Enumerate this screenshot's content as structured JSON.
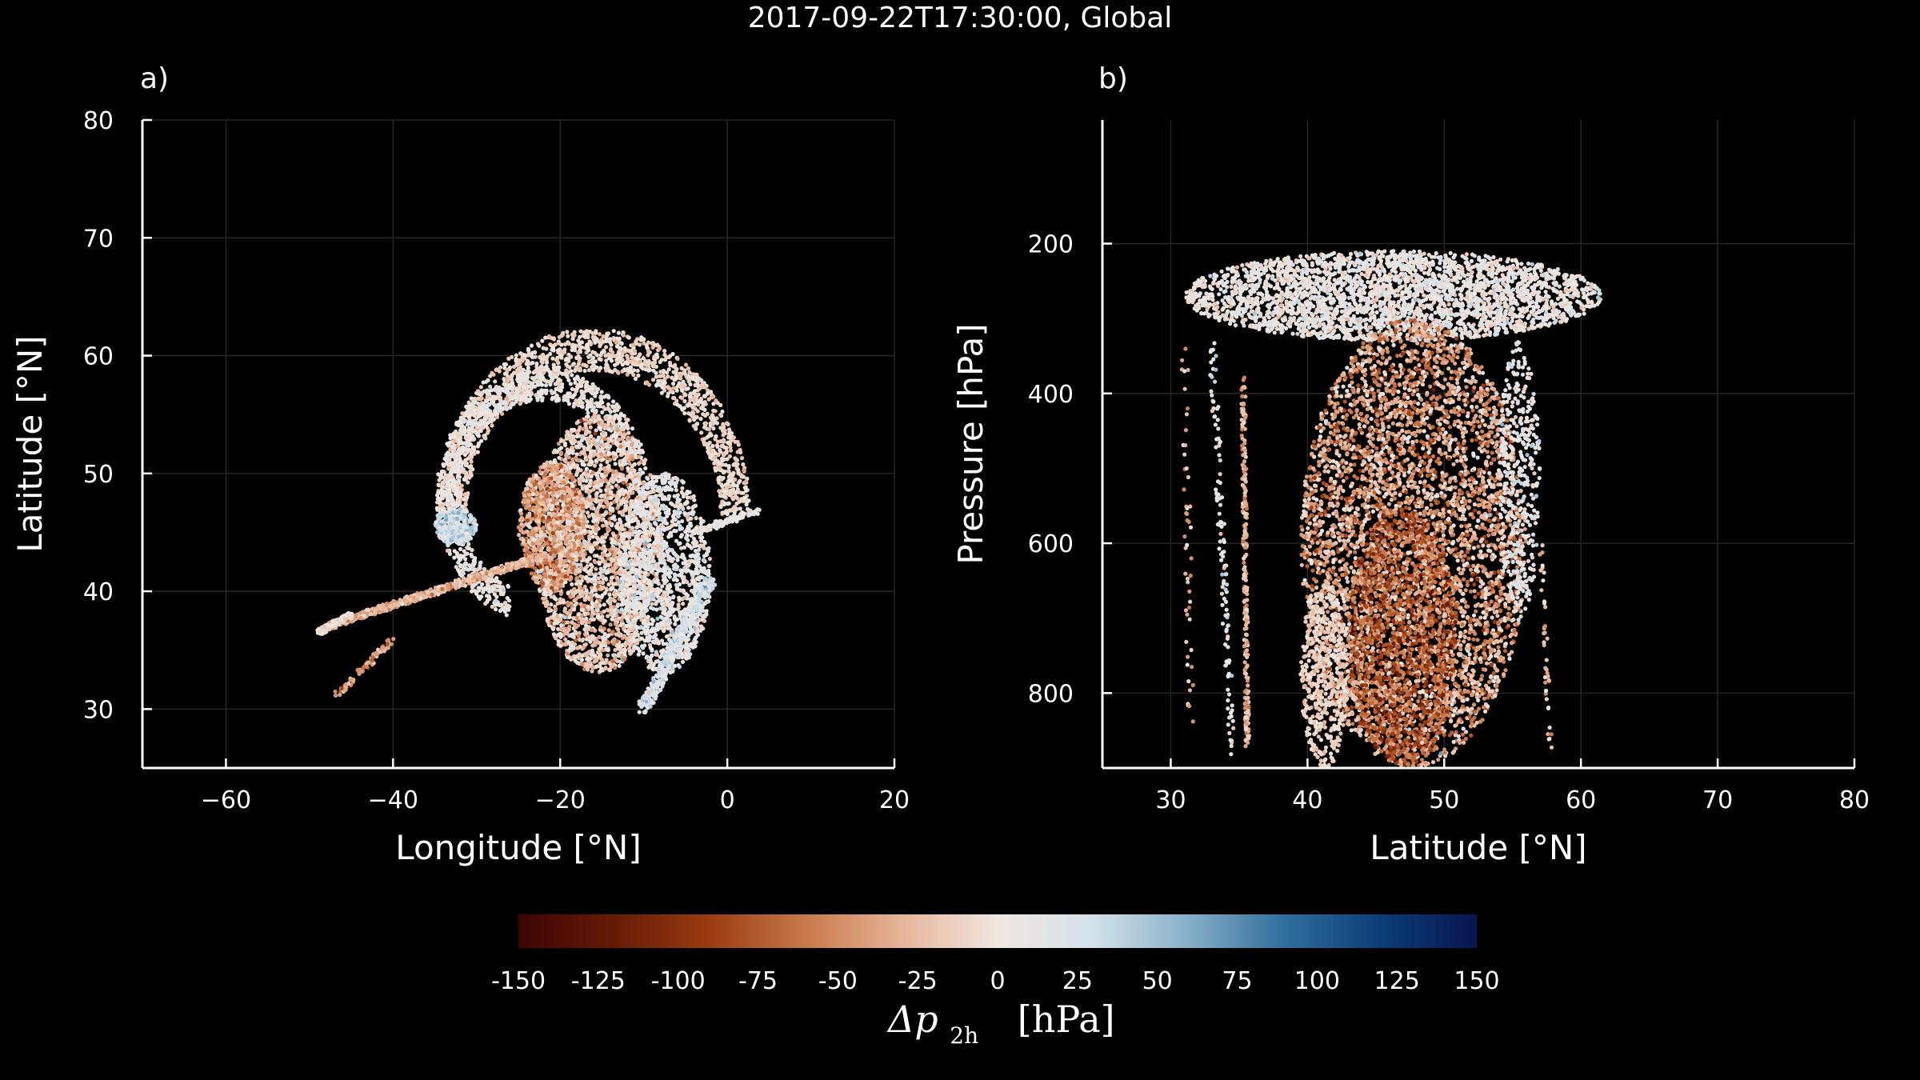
{
  "figure": {
    "title": "2017-09-22T17:30:00, Global"
  },
  "colors": {
    "background": "#000000",
    "foreground": "#ffffff",
    "grid": "#262626",
    "colormap": [
      "#3d0404",
      "#671b06",
      "#9a3c10",
      "#c9794a",
      "#e6b59a",
      "#f0e6e0",
      "#d3e1ea",
      "#86afc9",
      "#2f6d9c",
      "#0b3d78",
      "#091650"
    ]
  },
  "chart_data": [
    {
      "panel_label": "a)",
      "type": "scatter",
      "xlabel": "Longitude [°N]",
      "ylabel": "Latitude [°N]",
      "xlim": [
        -70,
        20
      ],
      "ylim": [
        25,
        80
      ],
      "xticks": [
        -60,
        -40,
        -20,
        0,
        20
      ],
      "xtick_labels": [
        "−60",
        "−40",
        "−20",
        "0",
        "20"
      ],
      "yticks": [
        30,
        40,
        50,
        60,
        70,
        80
      ],
      "ytick_labels": [
        "30",
        "40",
        "50",
        "60",
        "70",
        "80"
      ],
      "grid": true,
      "description_of_points": "trajectory parcels colored by pressure change; comma-shaped spiral cloud centered near (-18, 47)",
      "point_groups": [
        {
          "shape": "arc",
          "cx": -16,
          "cy": 46.5,
          "rx": 17,
          "ry": 14,
          "theta0": 0,
          "theta1": 180,
          "width": 1.8,
          "count": 1400,
          "dp_mean": -8,
          "dp_sd": 10
        },
        {
          "shape": "arc",
          "cx": -22,
          "cy": 48,
          "rx": 11.5,
          "ry": 9.5,
          "theta0": 20,
          "theta1": 250,
          "width": 1.3,
          "count": 1000,
          "dp_mean": 5,
          "dp_sd": 12
        },
        {
          "shape": "blob",
          "x0": -23,
          "x1": -8,
          "y0": 33,
          "y1": 55,
          "count": 2600,
          "dp_mean": -14,
          "dp_sd": 22
        },
        {
          "shape": "blob",
          "x0": -25,
          "x1": -17,
          "y0": 40,
          "y1": 51,
          "count": 900,
          "dp_mean": -40,
          "dp_sd": 25
        },
        {
          "shape": "blob",
          "x0": -13,
          "x1": -2,
          "y0": 33,
          "y1": 50,
          "count": 1300,
          "dp_mean": 10,
          "dp_sd": 15
        },
        {
          "shape": "blob",
          "x0": -35,
          "x1": -30,
          "y0": 44,
          "y1": 47,
          "count": 300,
          "dp_mean": 30,
          "dp_sd": 15
        },
        {
          "shape": "band",
          "x0": -48,
          "y0": 37,
          "x1": -22,
          "y1": 43,
          "width": 0.9,
          "count": 700,
          "dp_mean": -28,
          "dp_sd": 15
        },
        {
          "shape": "band",
          "x0": -49,
          "y0": 36.5,
          "x1": -45,
          "y1": 38,
          "width": 0.7,
          "count": 150,
          "dp_mean": -5,
          "dp_sd": 8
        },
        {
          "shape": "band",
          "x0": -47,
          "y0": 31,
          "x1": -40,
          "y1": 36,
          "width": 0.8,
          "count": 80,
          "dp_mean": -40,
          "dp_sd": 20
        },
        {
          "shape": "band",
          "x0": -10,
          "y0": 30,
          "x1": -2,
          "y1": 41,
          "width": 1.6,
          "count": 400,
          "dp_mean": 22,
          "dp_sd": 15
        },
        {
          "shape": "band",
          "x0": -4,
          "y0": 45,
          "x1": 3.5,
          "y1": 46.8,
          "width": 0.8,
          "count": 120,
          "dp_mean": 10,
          "dp_sd": 10
        }
      ]
    },
    {
      "panel_label": "b)",
      "type": "scatter",
      "xlabel": "Latitude [°N]",
      "ylabel": "Pressure [hPa]",
      "xlim": [
        25,
        80
      ],
      "ylim": [
        900,
        35
      ],
      "y_inverted": true,
      "xticks": [
        30,
        40,
        50,
        60,
        70,
        80
      ],
      "xtick_labels": [
        "30",
        "40",
        "50",
        "60",
        "70",
        "80"
      ],
      "yticks": [
        200,
        400,
        600,
        800
      ],
      "ytick_labels": [
        "200",
        "400",
        "600",
        "800"
      ],
      "grid": true,
      "description_of_points": "vertical cross-section of parcels; ascending columns between 40 and 57 °N topped by outflow near 200-330 hPa",
      "point_groups": [
        {
          "shape": "blob",
          "x0": 31,
          "x1": 61.5,
          "y0": 210,
          "y1": 330,
          "count": 3200,
          "dp_mean": 6,
          "dp_sd": 14
        },
        {
          "shape": "blob",
          "x0": 39.5,
          "x1": 56,
          "y0": 300,
          "y1": 900,
          "count": 4800,
          "dp_mean": -38,
          "dp_sd": 28
        },
        {
          "shape": "blob",
          "x0": 43,
          "x1": 51,
          "y0": 550,
          "y1": 900,
          "count": 1400,
          "dp_mean": -75,
          "dp_sd": 25
        },
        {
          "shape": "blob",
          "x0": 39.5,
          "x1": 43,
          "y0": 650,
          "y1": 900,
          "count": 500,
          "dp_mean": -12,
          "dp_sd": 10
        },
        {
          "shape": "blob",
          "x0": 54,
          "x1": 57,
          "y0": 330,
          "y1": 700,
          "count": 400,
          "dp_mean": 12,
          "dp_sd": 14
        },
        {
          "shape": "band",
          "x0": 35.3,
          "y0": 380,
          "x1": 35.6,
          "y1": 870,
          "width": 0.3,
          "count": 220,
          "dp_mean": -30,
          "dp_sd": 15
        },
        {
          "shape": "band",
          "x0": 33,
          "y0": 330,
          "x1": 34.5,
          "y1": 880,
          "width": 0.5,
          "count": 120,
          "dp_mean": 10,
          "dp_sd": 15
        },
        {
          "shape": "band",
          "x0": 31,
          "y0": 340,
          "x1": 31.5,
          "y1": 860,
          "width": 0.5,
          "count": 50,
          "dp_mean": -30,
          "dp_sd": 20
        },
        {
          "shape": "band",
          "x0": 57,
          "y0": 600,
          "x1": 57.8,
          "y1": 880,
          "width": 0.4,
          "count": 40,
          "dp_mean": -20,
          "dp_sd": 20
        }
      ]
    }
  ],
  "colorbar": {
    "ticks": [
      -150,
      -125,
      -100,
      -75,
      -50,
      -25,
      0,
      25,
      50,
      75,
      100,
      125,
      150
    ],
    "tick_labels": [
      "-150",
      "-125",
      "-100",
      "-75",
      "-50",
      "-25",
      "0",
      "25",
      "50",
      "75",
      "100",
      "125",
      "150"
    ],
    "label_symbol": "Δp",
    "label_subscript": "2h",
    "label_unit": "[hPa]",
    "range": [
      -150,
      150
    ]
  }
}
